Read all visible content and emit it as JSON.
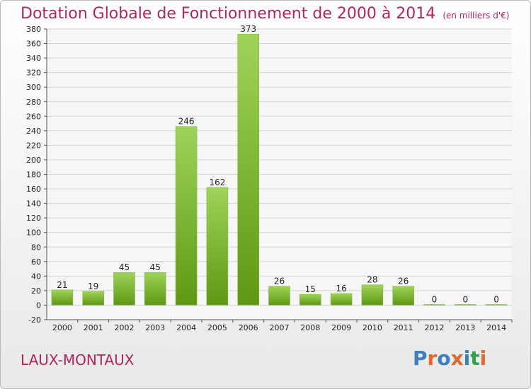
{
  "header": {
    "title": "Dotation Globale de Fonctionnement de 2000 à 2014",
    "subtitle": "(en milliers d'€)"
  },
  "footer": {
    "commune": "LAUX-MONTAUX",
    "logo_text": "Proxiti"
  },
  "colors": {
    "title": "#b5245f",
    "bar_light": "#9fd35a",
    "bar_dark": "#5e9812",
    "logo_letters": [
      "#3a7fc1",
      "#e8662a",
      "#3a7fc1",
      "#e8662a",
      "#3a7fc1",
      "#2fa24a",
      "#e8662a"
    ]
  },
  "chart_data": {
    "type": "bar",
    "title": "Dotation Globale de Fonctionnement de 2000 à 2014",
    "subtitle": "(en milliers d'€)",
    "categories": [
      "2000",
      "2001",
      "2002",
      "2003",
      "2004",
      "2005",
      "2006",
      "2007",
      "2008",
      "2009",
      "2010",
      "2011",
      "2012",
      "2013",
      "2014"
    ],
    "values": [
      21,
      19,
      45,
      45,
      246,
      162,
      373,
      26,
      15,
      16,
      28,
      26,
      0,
      0,
      0
    ],
    "value_labels": [
      "21",
      "19",
      "45",
      "45",
      "246",
      "162",
      "373",
      "26",
      "15",
      "16",
      "28",
      "26",
      "0",
      "0",
      "0"
    ],
    "ylim": [
      -20,
      380
    ],
    "yticks": [
      "380",
      "360",
      "340",
      "320",
      "300",
      "280",
      "260",
      "240",
      "220",
      "200",
      "180",
      "160",
      "140",
      "120",
      "100",
      "80",
      "60",
      "40",
      "20",
      "0",
      "-20"
    ],
    "xlabel": "",
    "ylabel": "",
    "grid": true
  }
}
